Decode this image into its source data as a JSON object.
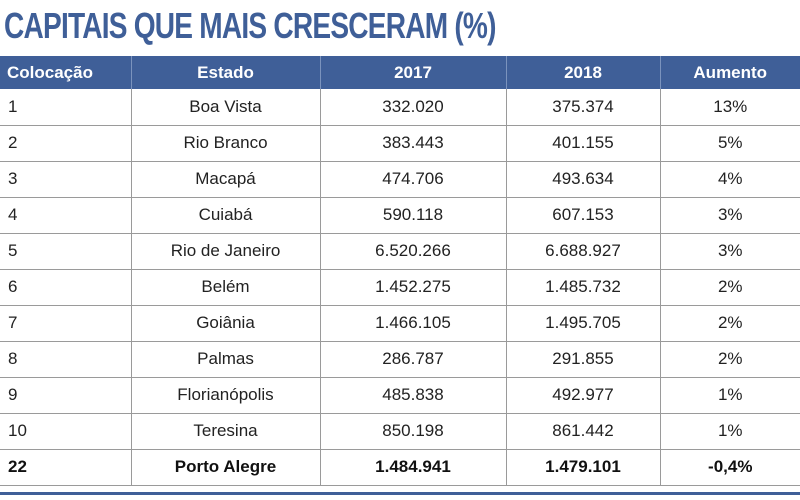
{
  "chart_data": {
    "type": "table",
    "title": "CAPITAIS QUE MAIS CRESCERAM (%)",
    "columns": [
      "Colocação",
      "Estado",
      "2017",
      "2018",
      "Aumento"
    ],
    "rows": [
      [
        "1",
        "Boa Vista",
        "332.020",
        "375.374",
        "13%"
      ],
      [
        "2",
        "Rio Branco",
        "383.443",
        "401.155",
        "5%"
      ],
      [
        "3",
        "Macapá",
        "474.706",
        "493.634",
        "4%"
      ],
      [
        "4",
        "Cuiabá",
        "590.118",
        "607.153",
        "3%"
      ],
      [
        "5",
        "Rio de Janeiro",
        "6.520.266",
        "6.688.927",
        "3%"
      ],
      [
        "6",
        "Belém",
        "1.452.275",
        "1.485.732",
        "2%"
      ],
      [
        "7",
        "Goiânia",
        "1.466.105",
        "1.495.705",
        "2%"
      ],
      [
        "8",
        "Palmas",
        "286.787",
        "291.855",
        "2%"
      ],
      [
        "9",
        "Florianópolis",
        "485.838",
        "492.977",
        "1%"
      ],
      [
        "10",
        "Teresina",
        "850.198",
        "861.442",
        "1%"
      ],
      [
        "22",
        "Porto Alegre",
        "1.484.941",
        "1.479.101",
        "-0,4%"
      ]
    ],
    "highlight_row": 10
  },
  "colors": {
    "header_bg": "#3f5f98",
    "title": "#3f5f98",
    "grid": "#9a9a9a"
  }
}
